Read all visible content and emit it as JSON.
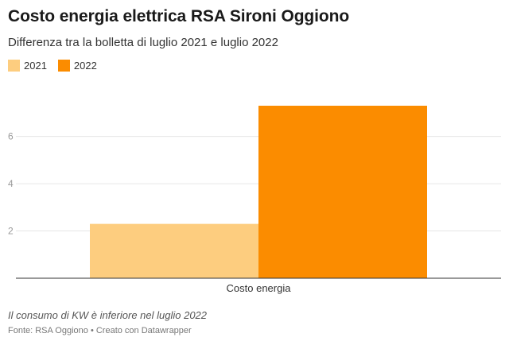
{
  "header": {
    "title": "Costo energia elettrica RSA Sironi Oggiono",
    "subtitle": "Differenza tra la bolletta di luglio 2021 e luglio 2022"
  },
  "legend": {
    "items": [
      {
        "label": "2021",
        "color": "#fdcd7f"
      },
      {
        "label": "2022",
        "color": "#fb8c00"
      }
    ]
  },
  "chart_data": {
    "type": "bar",
    "categories": [
      "Costo energia"
    ],
    "series": [
      {
        "name": "2021",
        "values": [
          2.3
        ],
        "color": "#fdcd7f"
      },
      {
        "name": "2022",
        "values": [
          7.3
        ],
        "color": "#fb8c00"
      }
    ],
    "yticks": [
      2,
      4,
      6
    ],
    "ylim": [
      0,
      7.3
    ],
    "grid": true,
    "legend_position": "top-left"
  },
  "footer": {
    "note": "Il consumo di KW è inferiore nel luglio 2022",
    "source": "Fonte: RSA Oggiono • Creato con Datawrapper"
  }
}
